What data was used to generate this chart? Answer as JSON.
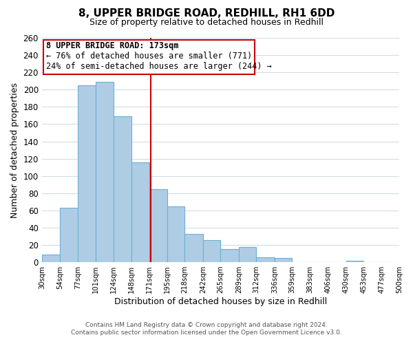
{
  "title": "8, UPPER BRIDGE ROAD, REDHILL, RH1 6DD",
  "subtitle": "Size of property relative to detached houses in Redhill",
  "xlabel": "Distribution of detached houses by size in Redhill",
  "ylabel": "Number of detached properties",
  "bar_edges": [
    30,
    54,
    77,
    101,
    124,
    148,
    171,
    195,
    218,
    242,
    265,
    289,
    312,
    336,
    359,
    383,
    406,
    430,
    453,
    477,
    500
  ],
  "bar_heights": [
    9,
    63,
    205,
    209,
    169,
    116,
    85,
    65,
    33,
    26,
    15,
    18,
    6,
    5,
    0,
    0,
    0,
    2,
    0,
    0
  ],
  "bar_color": "#aecde4",
  "bar_edge_color": "#6aaed6",
  "property_size": 173,
  "vline_color": "#cc0000",
  "annotation_box_edge_color": "#cc0000",
  "annotation_line1": "8 UPPER BRIDGE ROAD: 173sqm",
  "annotation_line2": "← 76% of detached houses are smaller (771)",
  "annotation_line3": "24% of semi-detached houses are larger (244) →",
  "ylim": [
    0,
    260
  ],
  "tick_labels": [
    "30sqm",
    "54sqm",
    "77sqm",
    "101sqm",
    "124sqm",
    "148sqm",
    "171sqm",
    "195sqm",
    "218sqm",
    "242sqm",
    "265sqm",
    "289sqm",
    "312sqm",
    "336sqm",
    "359sqm",
    "383sqm",
    "406sqm",
    "430sqm",
    "453sqm",
    "477sqm",
    "500sqm"
  ],
  "footer_line1": "Contains HM Land Registry data © Crown copyright and database right 2024.",
  "footer_line2": "Contains public sector information licensed under the Open Government Licence v3.0.",
  "background_color": "#ffffff",
  "grid_color": "#d0dce8",
  "title_fontsize": 11,
  "subtitle_fontsize": 9,
  "annotation_fontsize": 8.5,
  "ylabel_fontsize": 9,
  "xlabel_fontsize": 9
}
